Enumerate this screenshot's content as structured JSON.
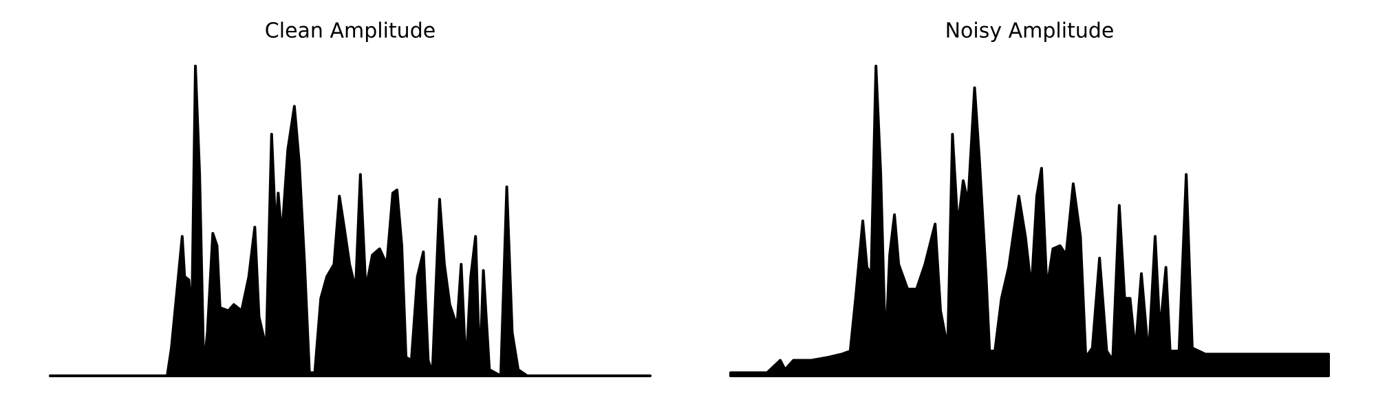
{
  "chart_data": [
    {
      "type": "area",
      "title": "Clean Amplitude",
      "color": "#000000",
      "xlim": [
        0,
        100
      ],
      "ylim": [
        0,
        1
      ],
      "x": [
        0,
        19.5,
        20.2,
        21.0,
        22.0,
        22.4,
        23.1,
        23.6,
        24.2,
        24.9,
        25.6,
        26.2,
        27.1,
        27.8,
        28.3,
        29.7,
        30.6,
        31.9,
        33.1,
        34.1,
        34.8,
        36.0,
        36.9,
        37.6,
        38.0,
        38.6,
        39.6,
        40.7,
        41.5,
        42.4,
        43.2,
        44.1,
        45.1,
        46.1,
        47.3,
        48.2,
        49.0,
        49.9,
        50.9,
        51.7,
        52.6,
        53.7,
        54.9,
        56.1,
        57.1,
        57.8,
        58.6,
        59.3,
        60.2,
        61.2,
        62.2,
        63.0,
        63.7,
        64.9,
        65.7,
        66.6,
        67.8,
        68.5,
        69.3,
        70.1,
        70.9,
        71.6,
        72.2,
        73.2,
        75.1,
        76.1,
        77.0,
        78.0,
        79.5,
        100
      ],
      "values": [
        0,
        0,
        0.09,
        0.25,
        0.45,
        0.32,
        0.31,
        0.19,
        1.0,
        0.65,
        0.02,
        0.14,
        0.46,
        0.42,
        0.22,
        0.21,
        0.23,
        0.21,
        0.32,
        0.48,
        0.19,
        0.09,
        0.78,
        0.46,
        0.59,
        0.45,
        0.73,
        0.87,
        0.69,
        0.36,
        0.01,
        0.01,
        0.25,
        0.32,
        0.36,
        0.58,
        0.48,
        0.36,
        0.28,
        0.65,
        0.28,
        0.39,
        0.41,
        0.36,
        0.59,
        0.6,
        0.42,
        0.06,
        0.05,
        0.32,
        0.4,
        0.05,
        0.01,
        0.57,
        0.36,
        0.23,
        0.16,
        0.36,
        0.02,
        0.32,
        0.45,
        0.02,
        0.34,
        0.02,
        0,
        0.61,
        0.14,
        0.02,
        0,
        0
      ]
    },
    {
      "type": "area",
      "title": "Noisy Amplitude",
      "color": "#000000",
      "xlim": [
        0,
        100
      ],
      "ylim": [
        0,
        1
      ],
      "x": [
        0,
        6.1,
        8.3,
        9.1,
        10.5,
        12.0,
        13.5,
        16.4,
        18.6,
        20.0,
        20.9,
        22.1,
        22.8,
        23.5,
        24.3,
        25.1,
        25.9,
        26.6,
        27.4,
        28.1,
        29.6,
        31.1,
        32.5,
        34.2,
        35.1,
        36.3,
        37.1,
        38.0,
        38.9,
        39.7,
        40.8,
        41.6,
        42.7,
        43.3,
        44.2,
        45.3,
        46.5,
        48.2,
        49.3,
        50.3,
        51.2,
        52.0,
        52.9,
        53.9,
        55.1,
        56.1,
        57.3,
        58.5,
        59.4,
        60.5,
        61.7,
        62.9,
        63.9,
        65.0,
        65.9,
        66.8,
        67.7,
        68.7,
        69.9,
        71.0,
        71.8,
        72.8,
        73.5,
        75.0,
        76.2,
        77.2,
        79.4,
        83.8,
        88.3,
        94.2,
        100
      ],
      "values": [
        0.01,
        0.01,
        0.05,
        0.02,
        0.05,
        0.05,
        0.05,
        0.06,
        0.07,
        0.08,
        0.25,
        0.5,
        0.35,
        0.33,
        1.0,
        0.65,
        0.08,
        0.39,
        0.52,
        0.36,
        0.28,
        0.28,
        0.36,
        0.49,
        0.21,
        0.09,
        0.78,
        0.48,
        0.63,
        0.56,
        0.93,
        0.7,
        0.33,
        0.08,
        0.08,
        0.25,
        0.35,
        0.58,
        0.45,
        0.28,
        0.58,
        0.67,
        0.28,
        0.41,
        0.42,
        0.39,
        0.62,
        0.45,
        0.06,
        0.09,
        0.38,
        0.08,
        0.05,
        0.55,
        0.25,
        0.25,
        0.08,
        0.33,
        0.06,
        0.45,
        0.14,
        0.35,
        0.08,
        0.08,
        0.65,
        0.09,
        0.07,
        0.07,
        0.07,
        0.07,
        0.07
      ]
    }
  ]
}
